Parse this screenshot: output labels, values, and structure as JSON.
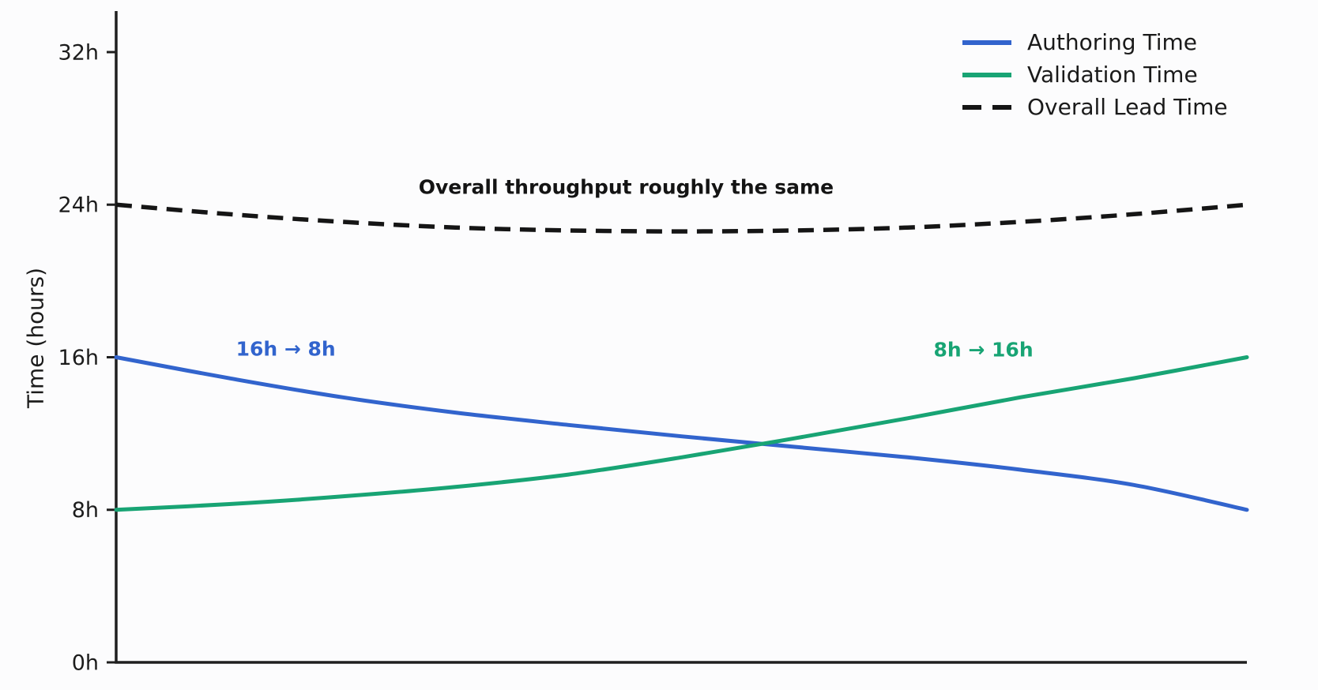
{
  "figure": {
    "background": "#fcfcfd",
    "axis_color": "#1f1f1f",
    "tick_label_color": "#1c1c1c"
  },
  "chart_data": {
    "type": "line",
    "title": "",
    "xlabel": "",
    "ylabel": "Time (hours)",
    "x": [
      0,
      1,
      2,
      3,
      4,
      5,
      6,
      7,
      8,
      9,
      10
    ],
    "x_axis_labeled": false,
    "ylim": [
      0,
      34
    ],
    "grid": false,
    "legend_position": "upper right",
    "yticks": [
      {
        "value": 0,
        "label": "0h"
      },
      {
        "value": 8,
        "label": "8h"
      },
      {
        "value": 16,
        "label": "16h"
      },
      {
        "value": 24,
        "label": "24h"
      },
      {
        "value": 32,
        "label": "32h"
      }
    ],
    "series": [
      {
        "name": "Authoring Time",
        "slug": "authoring-time",
        "color": "#3264cd",
        "dash": "solid",
        "values": [
          16.0,
          14.9,
          13.9,
          13.1,
          12.45,
          11.85,
          11.3,
          10.75,
          10.1,
          9.3,
          8.0
        ]
      },
      {
        "name": "Validation Time",
        "slug": "validation-time",
        "color": "#18a474",
        "dash": "solid",
        "values": [
          8.0,
          8.3,
          8.7,
          9.2,
          9.85,
          10.75,
          11.75,
          12.8,
          13.9,
          14.9,
          16.0
        ]
      },
      {
        "name": "Overall Lead Time",
        "slug": "overall-lead-time",
        "color": "#151515",
        "dash": "dashed",
        "values": [
          24.0,
          23.5,
          23.1,
          22.8,
          22.65,
          22.6,
          22.65,
          22.8,
          23.1,
          23.5,
          24.0
        ]
      }
    ],
    "annotations": [
      {
        "slug": "overall-throughput-note",
        "text": "Overall throughput roughly the same",
        "color": "#141414",
        "x": 4.51,
        "y": 24.92
      },
      {
        "slug": "authoring-change-note",
        "text": "16h → 8h",
        "color": "#3264cd",
        "x": 1.5,
        "y": 16.43
      },
      {
        "slug": "validation-change-note",
        "text": "8h → 16h",
        "color": "#18a474",
        "x": 7.67,
        "y": 16.39
      }
    ]
  }
}
